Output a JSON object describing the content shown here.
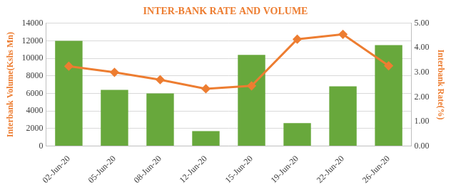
{
  "chart_data": {
    "type": "bar",
    "title": "INTER-BANK RATE AND VOLUME",
    "y_label": "Interbank Volume(Kshs Mn)",
    "y2_label": "Interbank Rate(%)",
    "categories": [
      "02-Jun-20",
      "05-Jun-20",
      "08-Jun-20",
      "12-Jun-20",
      "15-Jun-20",
      "19-Jun-20",
      "22-Jun-20",
      "26-Jun-20"
    ],
    "series": [
      {
        "type": "bar",
        "color": "#68a83c",
        "values": [
          12000,
          6400,
          6000,
          1700,
          10400,
          2600,
          6800,
          11500
        ]
      },
      {
        "type": "line",
        "axis": "y2",
        "color": "#ed7d31",
        "marker": "diamond",
        "line_style": "solid",
        "values": [
          3.25,
          3.0,
          2.7,
          2.33,
          2.45,
          4.35,
          4.55,
          3.27
        ]
      }
    ],
    "ylim": [
      0,
      14000
    ],
    "yticks": [
      0,
      2000,
      4000,
      6000,
      8000,
      10000,
      12000,
      14000
    ],
    "y2lim": [
      0,
      5
    ],
    "y2ticks": [
      {
        "value": 0,
        "label": "0.00"
      },
      {
        "value": 1,
        "label": "1.00"
      },
      {
        "value": 2,
        "label": "2.00"
      },
      {
        "value": 3,
        "label": "3.00"
      },
      {
        "value": 4,
        "label": "4.00"
      },
      {
        "value": 5,
        "label": "5.00"
      }
    ],
    "grid": true
  }
}
